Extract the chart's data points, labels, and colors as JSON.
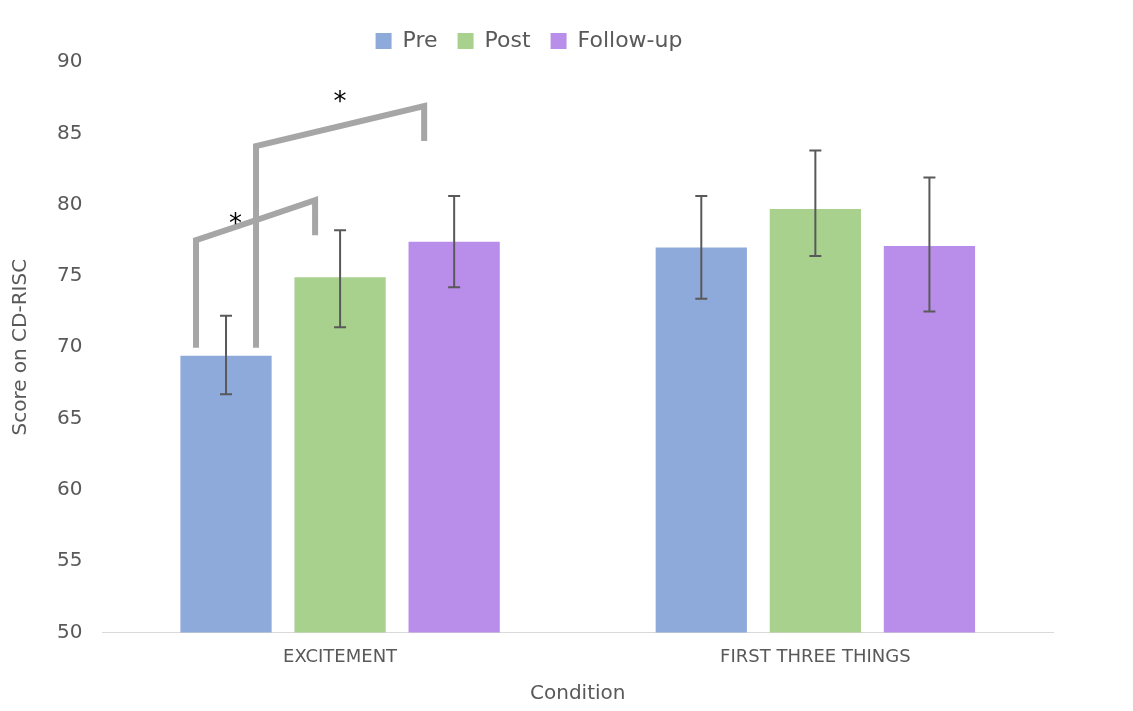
{
  "chart_data": {
    "type": "bar",
    "xlabel": "Condition",
    "ylabel": "Score on CD-RISC",
    "categories": [
      "EXCITEMENT",
      "FIRST THREE THINGS"
    ],
    "series": [
      {
        "name": "Pre",
        "color": "#8eaadb",
        "values": [
          69.4,
          77.0
        ],
        "errors": [
          [
            66.7,
            72.2
          ],
          [
            73.4,
            80.6
          ]
        ]
      },
      {
        "name": "Post",
        "color": "#a9d18e",
        "values": [
          74.9,
          79.7
        ],
        "errors": [
          [
            71.4,
            78.2
          ],
          [
            76.4,
            83.8
          ]
        ]
      },
      {
        "name": "Follow-up",
        "color": "#b98eea",
        "values": [
          77.4,
          77.1
        ],
        "errors": [
          [
            74.2,
            80.6
          ],
          [
            72.5,
            81.9
          ]
        ]
      }
    ],
    "ylim": [
      50,
      90
    ],
    "yticks": [
      50,
      55,
      60,
      65,
      70,
      75,
      80,
      85,
      90
    ],
    "grid": false,
    "legend": "top",
    "annotations": [
      "*",
      "*"
    ]
  }
}
